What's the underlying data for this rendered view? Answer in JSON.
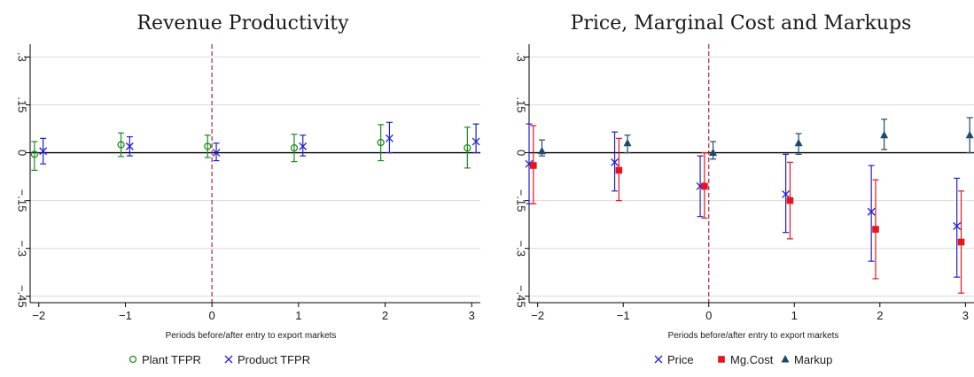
{
  "chart_data": [
    {
      "type": "scatter",
      "title": "Revenue Productivity",
      "xlabel": "Periods before/after entry to export markets",
      "ylabel": "",
      "xlim": [
        -2.1,
        3.1
      ],
      "ylim": [
        -0.47,
        0.34
      ],
      "x_ticks": [
        -2,
        -1,
        0,
        1,
        2,
        3
      ],
      "x_tick_labels": [
        "−2",
        "−1",
        "0",
        "1",
        "2",
        "3"
      ],
      "y_ticks": [
        0.3,
        0.15,
        0,
        -0.15,
        -0.3,
        -0.45
      ],
      "y_tick_labels": [
        ".3",
        ".15",
        "0",
        "−.15",
        "−.3",
        "−.45"
      ],
      "grid": true,
      "zero_line": true,
      "vline_x": 0,
      "legend_position": "bottom",
      "x": [
        -2,
        -1,
        0,
        1,
        2,
        3
      ],
      "series": [
        {
          "name": "Plant TFPR",
          "marker": "circle",
          "color": "#1f8a1f",
          "values": [
            -0.005,
            0.025,
            0.02,
            0.015,
            0.032,
            0.015
          ],
          "low": [
            -0.055,
            -0.012,
            -0.015,
            -0.028,
            -0.025,
            -0.048
          ],
          "high": [
            0.035,
            0.062,
            0.055,
            0.058,
            0.088,
            0.08
          ]
        },
        {
          "name": "Product TFPR",
          "marker": "x",
          "color": "#1f1fd6",
          "values": [
            0.005,
            0.02,
            0.0,
            0.02,
            0.045,
            0.035
          ],
          "low": [
            -0.035,
            -0.01,
            -0.025,
            -0.01,
            0.0,
            0.0
          ],
          "high": [
            0.045,
            0.05,
            0.03,
            0.055,
            0.095,
            0.09
          ]
        }
      ]
    },
    {
      "type": "scatter",
      "title": "Price, Marginal Cost and Markups",
      "xlabel": "Periods before/after entry to export markets",
      "ylabel": "",
      "xlim": [
        -2.1,
        3.1
      ],
      "ylim": [
        -0.47,
        0.34
      ],
      "x_ticks": [
        -2,
        -1,
        0,
        1,
        2,
        3
      ],
      "x_tick_labels": [
        "−2",
        "−1",
        "0",
        "1",
        "2",
        "3"
      ],
      "y_ticks": [
        0.3,
        0.15,
        0,
        -0.15,
        -0.3,
        -0.45
      ],
      "y_tick_labels": [
        ".3",
        ".15",
        "0",
        "−.15",
        "−.3",
        "−.45"
      ],
      "grid": true,
      "zero_line": true,
      "vline_x": 0,
      "legend_position": "bottom",
      "x": [
        -2,
        -1,
        0,
        1,
        2,
        3
      ],
      "series": [
        {
          "name": "Price",
          "marker": "x",
          "color": "#1f1fd6",
          "values": [
            -0.035,
            -0.03,
            -0.105,
            -0.13,
            -0.185,
            -0.23
          ],
          "low": [
            -0.16,
            -0.12,
            -0.2,
            -0.25,
            -0.34,
            -0.39
          ],
          "high": [
            0.09,
            0.065,
            -0.01,
            -0.005,
            -0.04,
            -0.08
          ]
        },
        {
          "name": "Mg.Cost",
          "marker": "square",
          "color": "#e8141c",
          "values": [
            -0.04,
            -0.055,
            -0.105,
            -0.15,
            -0.24,
            -0.28
          ],
          "low": [
            -0.16,
            -0.15,
            -0.205,
            -0.27,
            -0.395,
            -0.44
          ],
          "high": [
            0.085,
            0.045,
            0.0,
            -0.03,
            -0.085,
            -0.12
          ]
        },
        {
          "name": "Markup",
          "marker": "triangle",
          "color": "#1d4a6b",
          "values": [
            0.005,
            0.03,
            0.0,
            0.03,
            0.055,
            0.055
          ],
          "low": [
            -0.01,
            0.0,
            -0.02,
            -0.005,
            0.01,
            0.0
          ],
          "high": [
            0.04,
            0.055,
            0.035,
            0.06,
            0.105,
            0.11
          ]
        }
      ]
    }
  ]
}
